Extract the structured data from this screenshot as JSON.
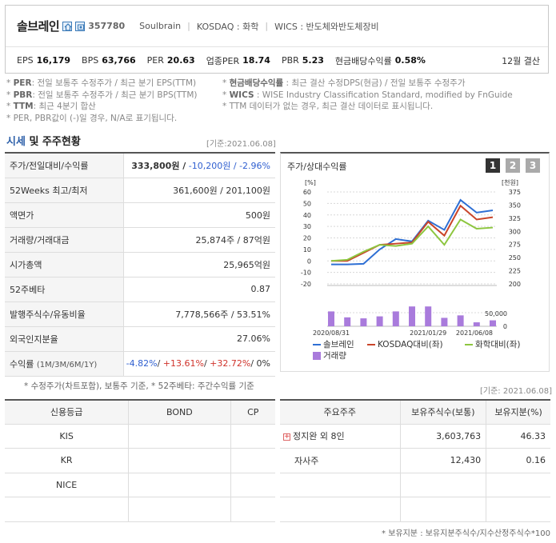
{
  "header": {
    "company": "솔브레인",
    "code": "357780",
    "meta": [
      "Soulbrain",
      "KOSDAQ : 화학",
      "WICS : 반도체와반도체장비"
    ],
    "metrics": [
      {
        "label": "EPS",
        "value": "16,179"
      },
      {
        "label": "BPS",
        "value": "63,766"
      },
      {
        "label": "PER",
        "value": "20.63"
      },
      {
        "label": "업종PER",
        "value": "18.74"
      },
      {
        "label": "PBR",
        "value": "5.23"
      },
      {
        "label": "현금배당수익률",
        "value": "0.58%"
      }
    ],
    "fiscal": "12월 결산"
  },
  "notes": {
    "left": [
      [
        "PER",
        ": 전일 보통주 수정주가 / 최근 분기 EPS(TTM)"
      ],
      [
        "PBR",
        ": 전일 보통주 수정주가 / 최근 분기 BPS(TTM)"
      ],
      [
        "TTM",
        ": 최근 4분기 합산"
      ],
      [
        "",
        "PER, PBR값이 (-)일 경우, N/A로 표기됩니다."
      ]
    ],
    "right": [
      [
        "현금배당수익률",
        " : 최근 결산 수정DPS(현금) / 전일 보통주 수정주가"
      ],
      [
        "WICS",
        " : WISE Industry Classification Standard, modified by FnGuide"
      ],
      [
        "",
        "TTM 데이터가 없는 경우, 최근 결산 데이터로 표시됩니다."
      ]
    ]
  },
  "market": {
    "title_a": "시세",
    "title_b": " 및 주주현황",
    "base_date": "[기준:2021.06.08]",
    "rows": [
      {
        "k": "주가/전일대비/수익률",
        "v1": "333,800원 /",
        "v2": " -10,200원 /",
        "v3": " -2.96%"
      },
      {
        "k": "52Weeks 최고/최저",
        "v": "361,600원 / 201,100원"
      },
      {
        "k": "액면가",
        "v": "500원"
      },
      {
        "k": "거래량/거래대금",
        "v": "25,874주 / 87억원"
      },
      {
        "k": "시가총액",
        "v": "25,965억원"
      },
      {
        "k": "52주베타",
        "v": "0.87"
      },
      {
        "k": "발행주식수/유동비율",
        "v": "7,778,566주 / 53.51%"
      },
      {
        "k": "외국인지분율",
        "v": "27.06%"
      },
      {
        "k": "수익률",
        "k2": "(1M/3M/6M/1Y)",
        "r1": "-4.82%",
        "r2": "+13.61%",
        "r3": "+32.72%",
        "r4": "0%"
      }
    ],
    "footnote": "* 수정주가(차트포함), 보통주 기준, * 52주베타: 주간수익률 기준"
  },
  "chart": {
    "title": "주가/상대수익률",
    "pages": [
      "1",
      "2",
      "3"
    ],
    "left_unit": "[%]",
    "right_unit": "[천원]",
    "vol_unit": "50,000",
    "vol_zero": "0",
    "left_ticks": [
      "60",
      "50",
      "40",
      "30",
      "20",
      "10",
      "0",
      "-10",
      "-20"
    ],
    "right_ticks": [
      "375",
      "350",
      "325",
      "300",
      "275",
      "250",
      "225",
      "200"
    ],
    "x_labels": [
      "2020/08/31",
      "2021/01/29",
      "2021/06/08"
    ],
    "legend": [
      "솔브레인",
      "KOSDAQ대비(좌)",
      "화학대비(좌)",
      "거래량"
    ],
    "colors": {
      "main": "#2e6fd4",
      "kosdaq": "#c9452a",
      "chem": "#8dc63f",
      "volume": "#a97bdc"
    }
  },
  "chart_data": {
    "type": "line",
    "x": [
      "2020/08/31",
      "2020/09",
      "2020/10",
      "2020/11",
      "2020/12",
      "2021/01",
      "2021/01/29",
      "2021/03",
      "2021/04",
      "2021/05",
      "2021/06/08"
    ],
    "series": [
      {
        "name": "솔브레인",
        "values": [
          -3,
          -3,
          -2.5,
          10,
          19,
          17,
          35,
          27,
          53,
          42,
          44
        ]
      },
      {
        "name": "KOSDAQ대비(좌)",
        "values": [
          0,
          0,
          7,
          14,
          15,
          16,
          34,
          22,
          48,
          36,
          38
        ]
      },
      {
        "name": "화학대비(좌)",
        "values": [
          0,
          1,
          8,
          14,
          13,
          15,
          30,
          14,
          36,
          28,
          29
        ]
      }
    ],
    "volume": [
      30000,
      18000,
      16000,
      20000,
      30000,
      40000,
      40000,
      17000,
      22000,
      8000,
      12000
    ],
    "ylim": [
      -20,
      60
    ],
    "vol_max": 50000
  },
  "credit": {
    "headers": [
      "신용등급",
      "BOND",
      "CP"
    ],
    "rows": [
      [
        "KIS",
        "",
        ""
      ],
      [
        "KR",
        "",
        ""
      ],
      [
        "NICE",
        "",
        ""
      ],
      [
        "",
        "",
        ""
      ]
    ]
  },
  "holders": {
    "base_date": "[기준: 2021.06.08]",
    "headers": [
      "주요주주",
      "보유주식수(보통)",
      "보유지분(%)"
    ],
    "rows": [
      {
        "name": "정지완 외 8인",
        "shares": "3,603,763",
        "pct": "46.33",
        "expand": "+"
      },
      {
        "name": "자사주",
        "shares": "12,430",
        "pct": "0.16"
      },
      {
        "name": "",
        "shares": "",
        "pct": ""
      },
      {
        "name": "",
        "shares": "",
        "pct": ""
      }
    ],
    "footnote": "* 보유지분 : 보유지분주식수/지수산정주식수*100"
  }
}
